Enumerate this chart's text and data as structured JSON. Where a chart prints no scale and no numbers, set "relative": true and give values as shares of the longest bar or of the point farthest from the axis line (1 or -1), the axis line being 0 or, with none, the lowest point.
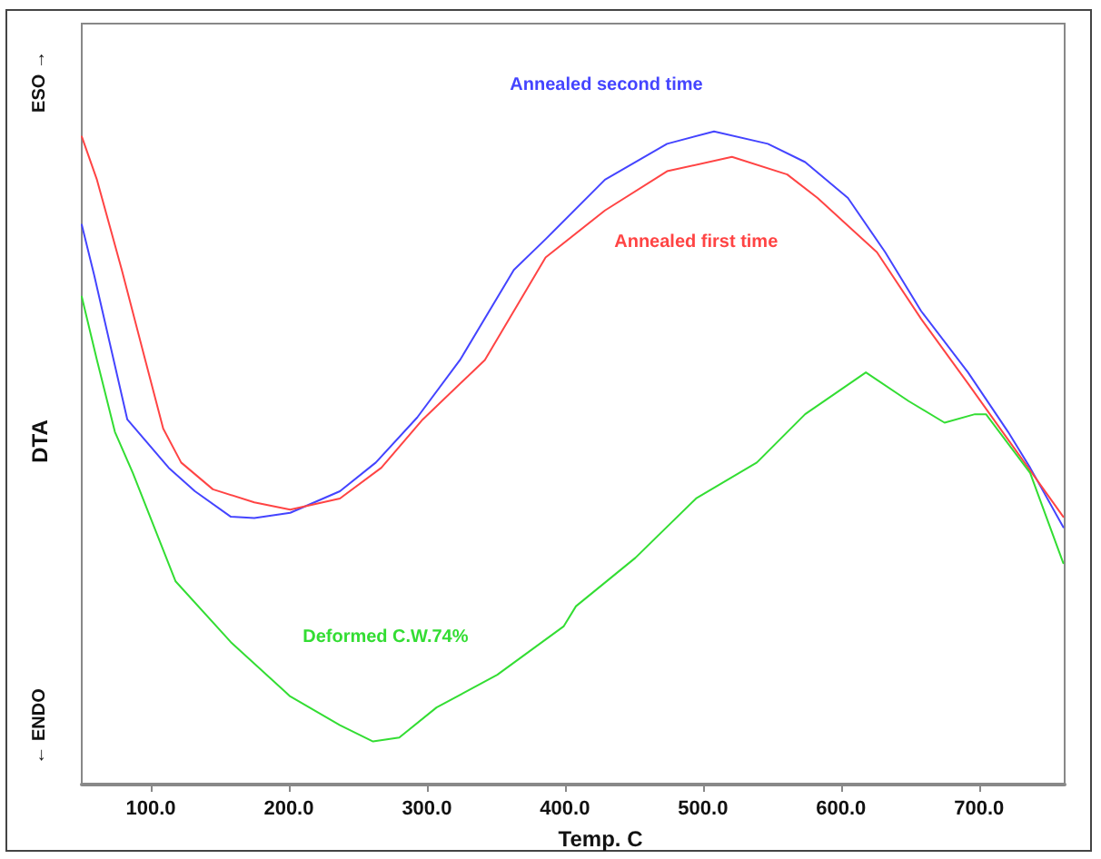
{
  "chart_data": {
    "type": "line",
    "relative": true,
    "xlabel": "Temp. C",
    "ylabel": "DTA",
    "annotations": [
      "ESO →",
      "← ENDO"
    ],
    "xlim": [
      50,
      762
    ],
    "xticks": [
      {
        "value": 100,
        "label": "100.0"
      },
      {
        "value": 200,
        "label": "200.0"
      },
      {
        "value": 300,
        "label": "300.0"
      },
      {
        "value": 400,
        "label": "400.0"
      },
      {
        "value": 500,
        "label": "500.0"
      },
      {
        "value": 600,
        "label": "600.0"
      },
      {
        "value": 700,
        "label": "700.0"
      }
    ],
    "grid": false,
    "legend": false,
    "marker": "none",
    "line_style": "solid",
    "series": [
      {
        "name": "Annealed second time",
        "color": "#4444ff",
        "x": [
          50,
          59,
          83,
          113,
          132,
          158,
          175,
          201,
          237,
          263,
          293,
          324,
          363,
          386,
          429,
          474,
          508,
          547,
          574,
          605,
          632,
          658,
          692,
          721,
          737,
          761
        ],
        "values": [
          0.857,
          0.78,
          0.559,
          0.485,
          0.449,
          0.41,
          0.408,
          0.416,
          0.449,
          0.493,
          0.562,
          0.65,
          0.788,
          0.835,
          0.926,
          0.981,
          1.0,
          0.981,
          0.953,
          0.898,
          0.815,
          0.725,
          0.631,
          0.54,
          0.485,
          0.394
        ]
      },
      {
        "name": "Annealed first time",
        "color": "#ff4444",
        "x": [
          50,
          61,
          79,
          96,
          109,
          122,
          145,
          175,
          201,
          237,
          267,
          297,
          342,
          386,
          429,
          474,
          521,
          561,
          583,
          626,
          658,
          692,
          717,
          761
        ],
        "values": [
          0.992,
          0.926,
          0.788,
          0.65,
          0.545,
          0.493,
          0.452,
          0.432,
          0.421,
          0.438,
          0.485,
          0.559,
          0.65,
          0.807,
          0.879,
          0.939,
          0.961,
          0.934,
          0.898,
          0.815,
          0.713,
          0.614,
          0.54,
          0.41
        ]
      },
      {
        "name": "Deformed C.W.74%",
        "color": "#33dd33",
        "x": [
          50,
          61,
          74,
          87,
          118,
          158,
          201,
          237,
          261,
          280,
          307,
          351,
          399,
          408,
          451,
          495,
          539,
          574,
          618,
          649,
          675,
          697,
          705,
          737,
          761
        ],
        "values": [
          0.747,
          0.65,
          0.54,
          0.477,
          0.311,
          0.218,
          0.135,
          0.091,
          0.066,
          0.072,
          0.118,
          0.168,
          0.242,
          0.273,
          0.347,
          0.438,
          0.493,
          0.567,
          0.631,
          0.587,
          0.554,
          0.567,
          0.567,
          0.477,
          0.339
        ]
      }
    ]
  }
}
